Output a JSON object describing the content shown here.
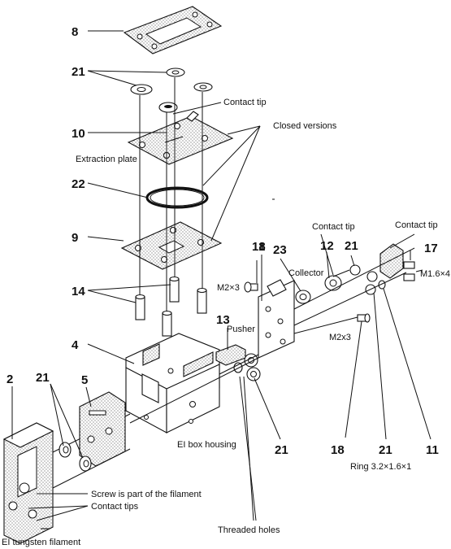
{
  "part_numbers": {
    "p8": "8",
    "p21_top": "21",
    "p10": "10",
    "p22": "22",
    "p9": "9",
    "p14": "14",
    "p4": "4",
    "p13": "13",
    "p2": "2",
    "p21_left": "21",
    "p5": "5",
    "p18_top": "18",
    "p1": "1",
    "p23": "23",
    "p12": "12",
    "p21_right_top": "21",
    "p17": "17",
    "p21_bottom_mid": "21",
    "p18_bottom": "18",
    "p21_bottom_right": "21",
    "p11": "11"
  },
  "labels": {
    "contact_tip_top": "Contact tip",
    "closed_versions": "Closed versions",
    "extraction_plate": "Extraction plate",
    "contact_tip_mid": "Contact tip",
    "contact_tip_right": "Contact tip",
    "collector": "Collector",
    "m2x3_left": "M2×3",
    "m16x4": "M1.6×4",
    "pusher": "Pusher",
    "m2x3_right": "M2x3",
    "ei_box_housing": "EI box housing",
    "ring": "Ring 3.2×1.6×1",
    "screw_filament": "Screw is part of the filament",
    "contact_tips": "Contact tips",
    "ei_tungsten": "EI tungsten filament",
    "threaded_holes": "Threaded holes"
  }
}
